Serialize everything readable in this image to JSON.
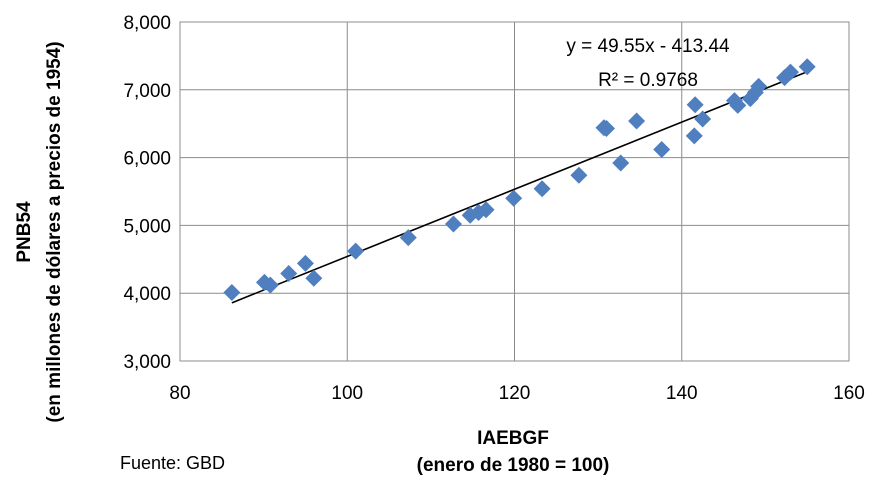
{
  "chart_data": {
    "type": "scatter",
    "xlabel": "IAEBGF",
    "xlabel_sub": "(enero de 1980 = 100)",
    "ylabel": "PNB54",
    "ylabel_sub": "(en millones de dólares a precios de  1954)",
    "xlim": [
      80,
      160
    ],
    "ylim": [
      3000,
      8000
    ],
    "x_ticks": [
      80,
      100,
      120,
      140,
      160
    ],
    "y_ticks": [
      3000,
      4000,
      5000,
      6000,
      7000,
      8000
    ],
    "x_tick_labels": [
      "80",
      "100",
      "120",
      "140",
      "160"
    ],
    "y_tick_labels": [
      "3,000",
      "4,000",
      "5,000",
      "6,000",
      "7,000",
      "8,000"
    ],
    "grid": true,
    "marker_color": "#4f7fbf",
    "trendline": {
      "type": "linear",
      "slope": 49.55,
      "intercept": -413.44,
      "x_range": [
        86.2,
        155.0
      ],
      "equation": "y = 49.55x - 413.44",
      "r_squared": "R² = 0.9768"
    },
    "points": [
      {
        "x": 86.2,
        "y": 4010
      },
      {
        "x": 90.1,
        "y": 4160
      },
      {
        "x": 90.8,
        "y": 4120
      },
      {
        "x": 93.0,
        "y": 4290
      },
      {
        "x": 95.0,
        "y": 4440
      },
      {
        "x": 96.0,
        "y": 4220
      },
      {
        "x": 101.0,
        "y": 4620
      },
      {
        "x": 107.3,
        "y": 4820
      },
      {
        "x": 112.7,
        "y": 5020
      },
      {
        "x": 114.7,
        "y": 5150
      },
      {
        "x": 115.7,
        "y": 5190
      },
      {
        "x": 116.6,
        "y": 5230
      },
      {
        "x": 119.9,
        "y": 5400
      },
      {
        "x": 123.3,
        "y": 5540
      },
      {
        "x": 127.7,
        "y": 5740
      },
      {
        "x": 130.7,
        "y": 6440
      },
      {
        "x": 131.0,
        "y": 6430
      },
      {
        "x": 132.7,
        "y": 5920
      },
      {
        "x": 134.6,
        "y": 6540
      },
      {
        "x": 137.6,
        "y": 6120
      },
      {
        "x": 141.5,
        "y": 6320
      },
      {
        "x": 141.6,
        "y": 6780
      },
      {
        "x": 142.5,
        "y": 6570
      },
      {
        "x": 146.3,
        "y": 6840
      },
      {
        "x": 146.7,
        "y": 6770
      },
      {
        "x": 148.2,
        "y": 6870
      },
      {
        "x": 148.8,
        "y": 6960
      },
      {
        "x": 149.2,
        "y": 7050
      },
      {
        "x": 152.3,
        "y": 7180
      },
      {
        "x": 153.0,
        "y": 7260
      },
      {
        "x": 155.0,
        "y": 7340
      }
    ]
  },
  "source_note": "Fuente: GBD"
}
